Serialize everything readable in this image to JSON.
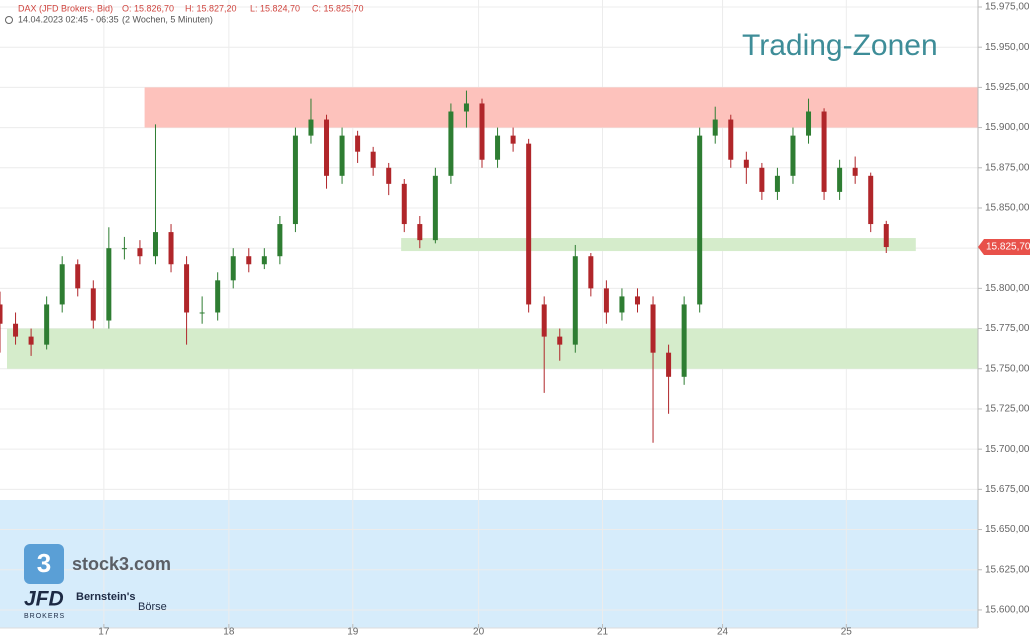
{
  "chart_data": {
    "type": "candlestick",
    "title": "Trading-Zonen",
    "header": {
      "symbol": "DAX (JFD Brokers, Bid)",
      "open": "O: 15.826,70",
      "high": "H: 15.827,20",
      "low": "L: 15.824,70",
      "close": "C: 15.825,70",
      "period": "14.04.2023 02:45 - 06:35",
      "interval": "(2 Wochen, 5 Minuten)"
    },
    "x": [
      0,
      1,
      2,
      3,
      4,
      5,
      6,
      7,
      8,
      9,
      10,
      11,
      12,
      13,
      14,
      15,
      16,
      17,
      18,
      19,
      20,
      21,
      22,
      23,
      24,
      25,
      26,
      27,
      28,
      29,
      30,
      31,
      32,
      33,
      34,
      35,
      36,
      37,
      38,
      39,
      40,
      41,
      42,
      43,
      44,
      45,
      46,
      47,
      48,
      49,
      50,
      51,
      52,
      53,
      54,
      55,
      56,
      57
    ],
    "open": [
      15790,
      15778,
      15770,
      15765,
      15790,
      15815,
      15800,
      15780,
      15825,
      15825,
      15820,
      15835,
      15815,
      15785,
      15785,
      15805,
      15820,
      15815,
      15820,
      15840,
      15895,
      15905,
      15870,
      15895,
      15885,
      15875,
      15865,
      15840,
      15830,
      15870,
      15910,
      15915,
      15880,
      15895,
      15890,
      15790,
      15770,
      15765,
      15820,
      15800,
      15785,
      15795,
      15790,
      15760,
      15745,
      15790,
      15895,
      15905,
      15880,
      15875,
      15860,
      15870,
      15895,
      15910,
      15860,
      15875,
      15870,
      15840
    ],
    "high": [
      15798,
      15785,
      15775,
      15795,
      15820,
      15818,
      15805,
      15838,
      15832,
      15830,
      15902,
      15840,
      15820,
      15795,
      15810,
      15825,
      15825,
      15825,
      15845,
      15900,
      15918,
      15908,
      15900,
      15898,
      15888,
      15878,
      15868,
      15845,
      15875,
      15915,
      15923,
      15918,
      15900,
      15900,
      15893,
      15795,
      15775,
      15827,
      15822,
      15805,
      15800,
      15800,
      15795,
      15765,
      15795,
      15900,
      15913,
      15908,
      15885,
      15878,
      15875,
      15900,
      15918,
      15912,
      15880,
      15882,
      15872,
      15842
    ],
    "low": [
      15760,
      15765,
      15758,
      15762,
      15785,
      15795,
      15775,
      15775,
      15818,
      15815,
      15815,
      15810,
      15765,
      15778,
      15780,
      15800,
      15810,
      15812,
      15815,
      15835,
      15890,
      15862,
      15865,
      15878,
      15870,
      15858,
      15835,
      15825,
      15828,
      15865,
      15900,
      15875,
      15875,
      15885,
      15785,
      15735,
      15755,
      15760,
      15795,
      15778,
      15780,
      15785,
      15704,
      15722,
      15740,
      15785,
      15890,
      15875,
      15865,
      15855,
      15855,
      15865,
      15890,
      15855,
      15855,
      15865,
      15835,
      15822
    ],
    "close": [
      15778,
      15770,
      15765,
      15790,
      15815,
      15800,
      15780,
      15825,
      15825,
      15820,
      15835,
      15815,
      15785,
      15785,
      15805,
      15820,
      15815,
      15820,
      15840,
      15895,
      15905,
      15870,
      15895,
      15885,
      15875,
      15865,
      15840,
      15830,
      15870,
      15910,
      15915,
      15880,
      15895,
      15890,
      15790,
      15770,
      15765,
      15820,
      15800,
      15785,
      15795,
      15790,
      15760,
      15745,
      15790,
      15895,
      15905,
      15880,
      15875,
      15860,
      15870,
      15895,
      15910,
      15860,
      15875,
      15870,
      15840,
      15825.7
    ],
    "up_color": "#2e7d32",
    "down_color": "#b0262a",
    "zones": [
      {
        "from": 15900,
        "to": 15925,
        "x_start": 9.3,
        "x_end": 62.9,
        "color": "#fdc2bc"
      },
      {
        "from": 15823.2,
        "to": 15831.3,
        "x_start": 25.8,
        "x_end": 58.9,
        "color": "#d5eccb"
      },
      {
        "from": 15750,
        "to": 15775,
        "x_start": 0.45,
        "x_end": 62.9,
        "color": "#d5eccb"
      }
    ],
    "last_price": {
      "value": 15825.7,
      "label": "15.825,70"
    },
    "xlim": [
      0,
      62.9
    ],
    "xticks": [
      {
        "value": 6.68,
        "label": "17"
      },
      {
        "value": 14.72,
        "label": "18"
      },
      {
        "value": 22.69,
        "label": "19"
      },
      {
        "value": 30.78,
        "label": "20"
      },
      {
        "value": 38.75,
        "label": "21"
      },
      {
        "value": 46.47,
        "label": "24"
      },
      {
        "value": 54.43,
        "label": "25"
      }
    ],
    "ylim": [
      15592.5,
      15979.35
    ],
    "yticks": [
      {
        "value": 15975,
        "label": "15.975,00"
      },
      {
        "value": 15950,
        "label": "15.950,00"
      },
      {
        "value": 15925,
        "label": "15.925,00"
      },
      {
        "value": 15900,
        "label": "15.900,00"
      },
      {
        "value": 15875,
        "label": "15.875,00"
      },
      {
        "value": 15850,
        "label": "15.850,00"
      },
      {
        "value": 15825,
        "label": "15.825,00"
      },
      {
        "value": 15800,
        "label": "15.800,00"
      },
      {
        "value": 15775,
        "label": "15.775,00"
      },
      {
        "value": 15750,
        "label": "15.750,00"
      },
      {
        "value": 15725,
        "label": "15.725,00"
      },
      {
        "value": 15700,
        "label": "15.700,00"
      },
      {
        "value": 15675,
        "label": "15.675,00"
      },
      {
        "value": 15650,
        "label": "15.650,00"
      },
      {
        "value": 15625,
        "label": "15.625,00"
      },
      {
        "value": 15600,
        "label": "15.600,00"
      }
    ],
    "grid": true,
    "branding": {
      "icon": "3",
      "site": "stock3.com",
      "broker": "JFD",
      "broker_sub": "BROKERS",
      "partner": "Bernstein's",
      "partner_sub": "Börse"
    }
  }
}
